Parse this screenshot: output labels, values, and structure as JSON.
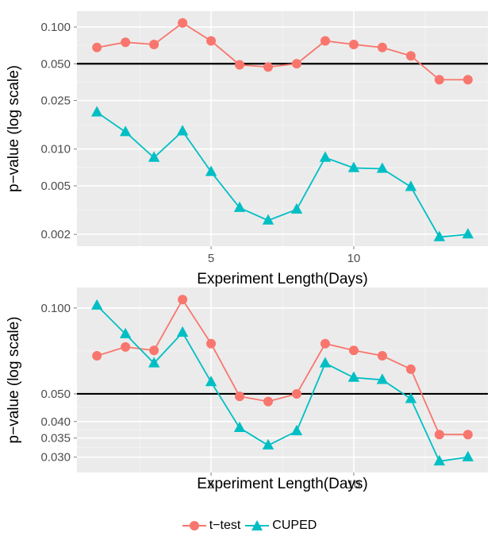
{
  "chart_data": [
    {
      "type": "line",
      "y_scale": "log",
      "xlabel": "Experiment Length(Days)",
      "ylabel": "p−value (log scale)",
      "xlim": [
        0.3,
        14.7
      ],
      "ylim": [
        0.0016,
        0.135
      ],
      "x_ticks": [
        5,
        10
      ],
      "x_tick_labels": [
        "5",
        "10"
      ],
      "y_ticks": [
        0.002,
        0.005,
        0.01,
        0.025,
        0.05,
        0.1
      ],
      "y_tick_labels": [
        "0.002",
        "0.005",
        "0.010",
        "0.025",
        "0.050",
        "0.100"
      ],
      "grid": true,
      "reference_line": 0.05,
      "x": [
        1,
        2,
        3,
        4,
        5,
        6,
        7,
        8,
        9,
        10,
        11,
        12,
        13,
        14
      ],
      "series": [
        {
          "name": "t−test",
          "color": "#F8766D",
          "marker": "circle",
          "values": [
            0.068,
            0.075,
            0.072,
            0.108,
            0.077,
            0.049,
            0.047,
            0.05,
            0.077,
            0.072,
            0.068,
            0.058,
            0.037,
            0.037
          ]
        },
        {
          "name": "CUPED",
          "color": "#00BFC4",
          "marker": "triangle",
          "values": [
            0.02,
            0.0138,
            0.0085,
            0.014,
            0.0065,
            0.0033,
            0.0026,
            0.0032,
            0.0085,
            0.007,
            0.0069,
            0.0049,
            0.0019,
            0.002
          ]
        }
      ]
    },
    {
      "type": "line",
      "y_scale": "log",
      "xlabel": "Experiment Length(Days)",
      "ylabel": "p−value (log scale)",
      "xlim": [
        0.3,
        14.7
      ],
      "ylim": [
        0.0265,
        0.118
      ],
      "x_ticks": [
        5,
        10
      ],
      "x_tick_labels": [
        "5",
        "10"
      ],
      "y_ticks": [
        0.03,
        0.035,
        0.04,
        0.05,
        0.1
      ],
      "y_tick_labels": [
        "0.030",
        "0.035",
        "0.040",
        "0.050",
        "0.100"
      ],
      "grid": true,
      "reference_line": 0.05,
      "x": [
        1,
        2,
        3,
        4,
        5,
        6,
        7,
        8,
        9,
        10,
        11,
        12,
        13,
        14
      ],
      "series": [
        {
          "name": "t−test",
          "color": "#F8766D",
          "marker": "circle",
          "values": [
            0.068,
            0.073,
            0.071,
            0.107,
            0.075,
            0.049,
            0.047,
            0.05,
            0.075,
            0.071,
            0.068,
            0.061,
            0.036,
            0.036
          ]
        },
        {
          "name": "CUPED",
          "color": "#00BFC4",
          "marker": "triangle",
          "values": [
            0.102,
            0.081,
            0.064,
            0.082,
            0.055,
            0.038,
            0.033,
            0.037,
            0.064,
            0.057,
            0.056,
            0.048,
            0.029,
            0.03
          ]
        }
      ]
    }
  ],
  "legend": {
    "position": "bottom",
    "items": [
      {
        "label": "t−test",
        "color": "#F8766D",
        "marker": "circle"
      },
      {
        "label": "CUPED",
        "color": "#00BFC4",
        "marker": "triangle"
      }
    ]
  }
}
